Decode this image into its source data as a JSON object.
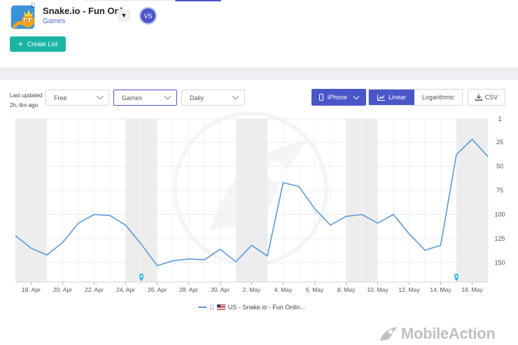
{
  "app": {
    "name": "Snake.io - Fun Onl...",
    "category": "Games",
    "platform_icon": "apple-icon",
    "vs_label": "VS",
    "create_list_label": "Create List"
  },
  "toolbar": {
    "last_updated_label": "Last updated",
    "last_updated_value": "2h, 6m ago",
    "price_filter": "Free",
    "category_filter": "Games",
    "period_filter": "Daily",
    "device_label": "iPhone",
    "scale_linear": "Linear",
    "scale_log": "Logarithmic",
    "csv_label": "CSV"
  },
  "colors": {
    "accent": "#4a56c8",
    "teal": "#1cb5a3",
    "line": "#5b9ad9",
    "weekend_band": "#ededed"
  },
  "chart_data": {
    "type": "line",
    "y_reversed": true,
    "ylim": [
      1,
      170
    ],
    "y_ticks": [
      1,
      25,
      50,
      75,
      100,
      125,
      150
    ],
    "y_axis_side": "right",
    "grid": true,
    "weekend_shading": true,
    "x_tick_labels": [
      "18. Apr",
      "20. Apr",
      "22. Apr",
      "24. Apr",
      "26. Apr",
      "28. Apr",
      "30. Apr",
      "2. May",
      "4. May",
      "6. May",
      "8. May",
      "10. May",
      "12. May",
      "14. May",
      "16. May"
    ],
    "series": [
      {
        "name": "US - Snake.io - Fun Onlin...",
        "x": [
          "17. Apr",
          "18. Apr",
          "19. Apr",
          "20. Apr",
          "21. Apr",
          "22. Apr",
          "23. Apr",
          "24. Apr",
          "25. Apr",
          "26. Apr",
          "27. Apr",
          "28. Apr",
          "29. Apr",
          "30. Apr",
          "1. May",
          "2. May",
          "3. May",
          "4. May",
          "5. May",
          "6. May",
          "7. May",
          "8. May",
          "9. May",
          "10. May",
          "11. May",
          "12. May",
          "13. May",
          "14. May",
          "15. May",
          "16. May",
          "17. May"
        ],
        "values": [
          122,
          135,
          142,
          129,
          109,
          100,
          101,
          111,
          131,
          153,
          148,
          146,
          147,
          136,
          149,
          132,
          143,
          67,
          71,
          94,
          111,
          102,
          100,
          109,
          100,
          120,
          137,
          132,
          38,
          22,
          40
        ]
      }
    ],
    "annotation_markers": [
      "25. Apr",
      "15. May"
    ],
    "legend": "bottom-center"
  },
  "brand": {
    "name": "MobileAction"
  }
}
